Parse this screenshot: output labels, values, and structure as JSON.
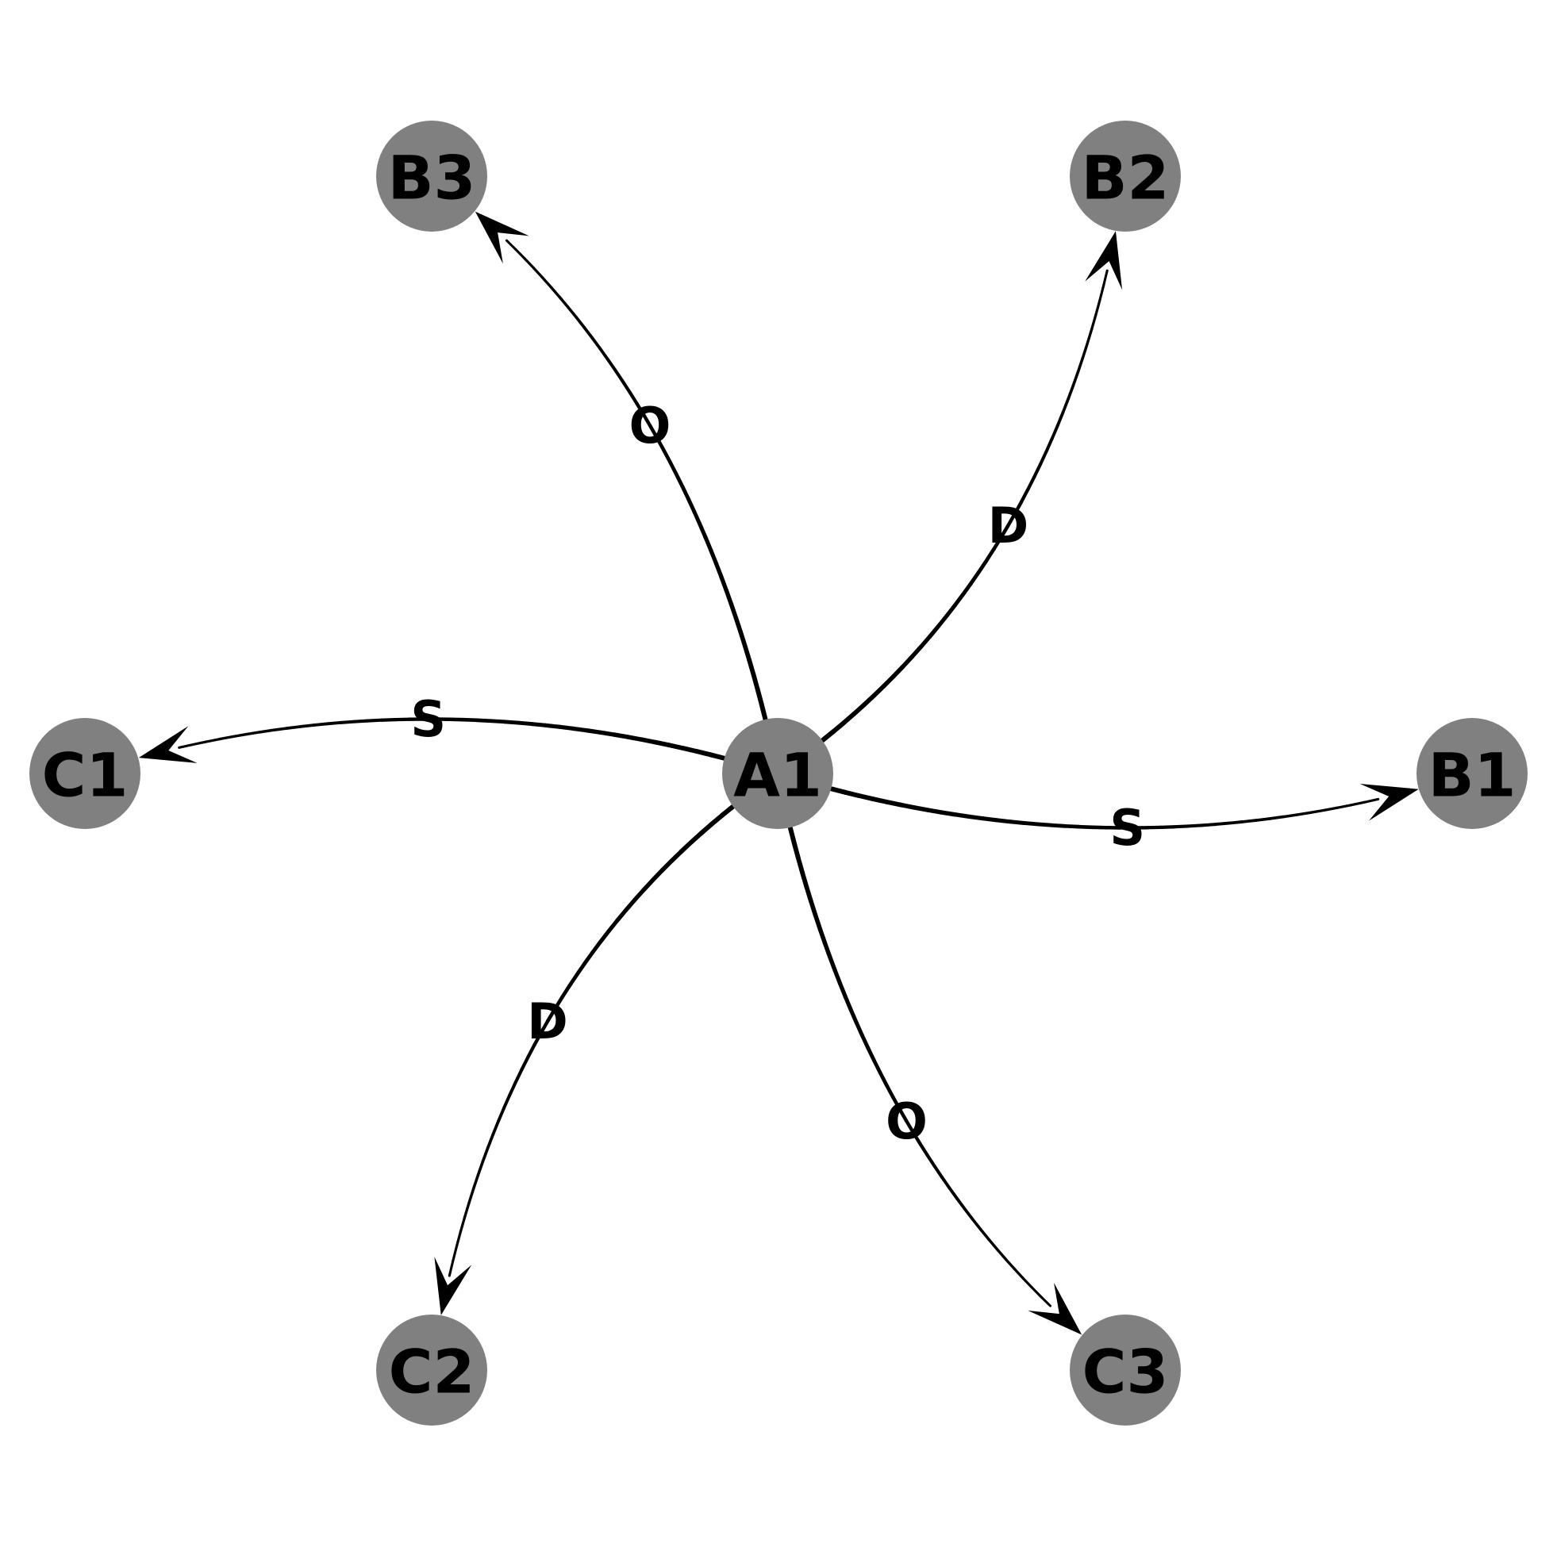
{
  "diagram": {
    "nodes": [
      {
        "id": "A1",
        "label": "A1"
      },
      {
        "id": "B1",
        "label": "B1"
      },
      {
        "id": "B2",
        "label": "B2"
      },
      {
        "id": "B3",
        "label": "B3"
      },
      {
        "id": "C1",
        "label": "C1"
      },
      {
        "id": "C2",
        "label": "C2"
      },
      {
        "id": "C3",
        "label": "C3"
      }
    ],
    "edges": [
      {
        "from": "A1",
        "to": "B1",
        "label": "S"
      },
      {
        "from": "A1",
        "to": "B2",
        "label": "D"
      },
      {
        "from": "A1",
        "to": "B3",
        "label": "O"
      },
      {
        "from": "A1",
        "to": "C1",
        "label": "S"
      },
      {
        "from": "A1",
        "to": "C2",
        "label": "D"
      },
      {
        "from": "A1",
        "to": "C3",
        "label": "O"
      }
    ],
    "colors": {
      "node_fill": "#808080",
      "edge": "#000000",
      "text": "#000000",
      "background": "#ffffff"
    }
  }
}
